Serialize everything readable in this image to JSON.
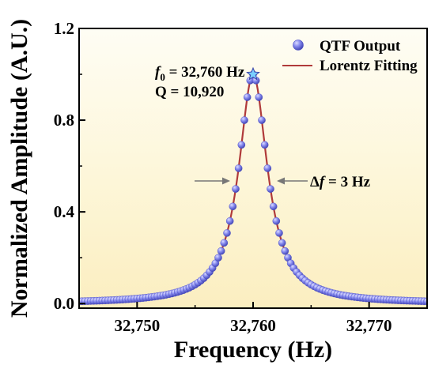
{
  "chart_data": {
    "type": "scatter",
    "xlabel": "Frequency (Hz)",
    "ylabel": "Normalized Amplitude (A.U.)",
    "xlim": [
      32745,
      32775
    ],
    "ylim": [
      -0.02,
      1.2
    ],
    "x_ticks": [
      32750,
      32760,
      32770
    ],
    "x_tick_labels": [
      "32,750",
      "32,760",
      "32,770"
    ],
    "y_ticks": [
      0.0,
      0.4,
      0.8,
      1.2
    ],
    "y_tick_labels": [
      "0.0",
      "0.4",
      "0.8",
      "1.2"
    ],
    "grid": false,
    "legend_position": "top-right",
    "series": [
      {
        "name": "QTF Output",
        "kind": "markers",
        "color": "#6a6ee0",
        "x_start": 32745,
        "x_end": 32775,
        "x_step": 0.25
      },
      {
        "name": "Lorentz Fitting",
        "kind": "line",
        "color": "#b03a3a",
        "x_start": 32745,
        "x_end": 32775,
        "x_step": 0.1
      }
    ],
    "model": {
      "function": "lorentzian",
      "center": 32760,
      "fwhm": 3,
      "peak": 1.0
    },
    "annotations": {
      "f0_symbol": "f",
      "f0_subscript": "0",
      "f0_value": " = 32,760 Hz",
      "q_text": "Q = 10,920",
      "df_prefix": "Δ",
      "df_symbol": "f",
      "df_value": " = 3 Hz"
    }
  }
}
